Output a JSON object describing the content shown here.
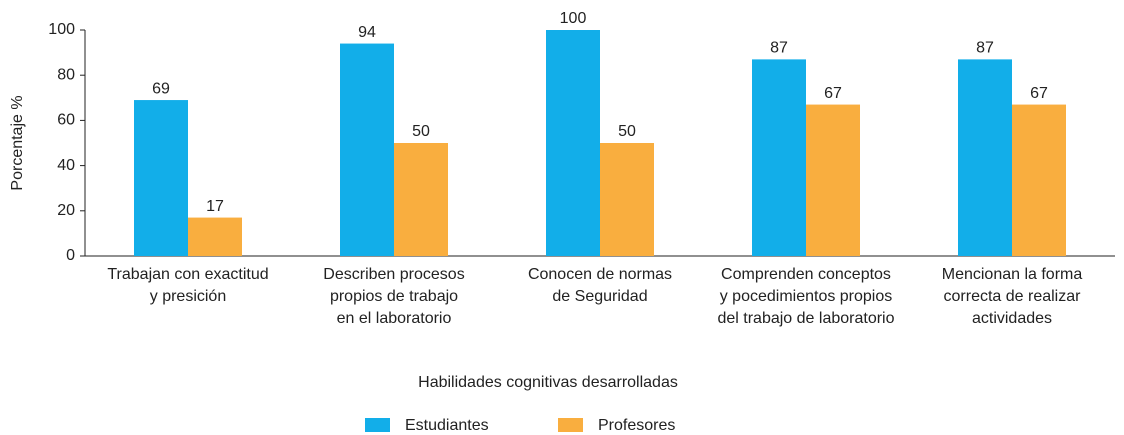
{
  "chart_data": {
    "type": "bar",
    "categories": [
      "Trabajan con exactitud\ny presición",
      "Describen procesos\npropios de trabajo\nen el laboratorio",
      "Conocen de normas\nde Seguridad",
      "Comprenden conceptos\ny pocedimientos propios\ndel trabajo de laboratorio",
      "Mencionan la forma\ncorrecta de realizar\nactividades"
    ],
    "series": [
      {
        "name": "Estudiantes",
        "color": "#12aee9",
        "values": [
          69,
          94,
          100,
          87,
          87
        ]
      },
      {
        "name": "Profesores",
        "color": "#f9ae3f",
        "values": [
          17,
          50,
          50,
          67,
          67
        ]
      }
    ],
    "ylabel": "Porcentaje %",
    "xlabel": "Habilidades cognitivas desarrolladas",
    "ylim": [
      0,
      100
    ],
    "yticks": [
      0,
      20,
      40,
      60,
      80,
      100
    ],
    "grid": false,
    "legend": "bottom"
  }
}
